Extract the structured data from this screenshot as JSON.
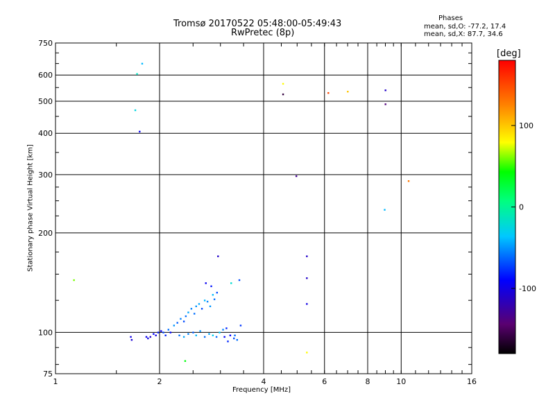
{
  "title": {
    "line1": "Tromsø 20170522 05:48:00-05:49:43",
    "line2": "RwPretec (8p)"
  },
  "stats": {
    "label": "Phases",
    "o_line": "mean, sd,O: -77.2, 17.4",
    "x_line": "mean, sd,X:  87.7, 34.6"
  },
  "colorbar": {
    "unit": "[deg]",
    "range": [
      -180,
      180
    ],
    "ticks": [
      {
        "value": 100,
        "label": "100"
      },
      {
        "value": 0,
        "label": "0"
      },
      {
        "value": -100,
        "label": "-100"
      }
    ]
  },
  "chart_data": {
    "type": "scatter",
    "xlabel": "Frequency [MHz]",
    "ylabel": "Stationary phase Virtual Height [km]",
    "xscale": "log",
    "yscale": "log",
    "xlim": [
      1,
      16
    ],
    "ylim": [
      75,
      750
    ],
    "grid": true,
    "x_ticks": [
      {
        "value": 1,
        "label": "1"
      },
      {
        "value": 2,
        "label": "2"
      },
      {
        "value": 4,
        "label": "4"
      },
      {
        "value": 6,
        "label": "6"
      },
      {
        "value": 8,
        "label": "8"
      },
      {
        "value": 10,
        "label": "10"
      },
      {
        "value": 16,
        "label": "16"
      }
    ],
    "y_ticks": [
      {
        "value": 75,
        "label": "75"
      },
      {
        "value": 100,
        "label": "100"
      },
      {
        "value": 200,
        "label": "200"
      },
      {
        "value": 300,
        "label": "300"
      },
      {
        "value": 400,
        "label": "400"
      },
      {
        "value": 500,
        "label": "500"
      },
      {
        "value": 600,
        "label": "600"
      },
      {
        "value": 750,
        "label": "750"
      }
    ],
    "points": [
      [
        1.72,
        605,
        -15
      ],
      [
        1.78,
        650,
        -40
      ],
      [
        1.7,
        470,
        -25
      ],
      [
        1.75,
        405,
        -95
      ],
      [
        1.65,
        97,
        -100
      ],
      [
        1.66,
        95,
        -105
      ],
      [
        1.83,
        97,
        -95
      ],
      [
        1.85,
        96,
        -100
      ],
      [
        1.88,
        97,
        -110
      ],
      [
        1.92,
        99,
        -90
      ],
      [
        1.95,
        98,
        -100
      ],
      [
        1.98,
        100,
        -85
      ],
      [
        2.02,
        101,
        -95
      ],
      [
        2.05,
        100,
        -70
      ],
      [
        2.08,
        98,
        -80
      ],
      [
        2.12,
        102,
        -60
      ],
      [
        2.15,
        100,
        -90
      ],
      [
        2.2,
        105,
        -50
      ],
      [
        2.25,
        107,
        -65
      ],
      [
        2.3,
        110,
        -55
      ],
      [
        2.35,
        108,
        -70
      ],
      [
        2.38,
        112,
        -60
      ],
      [
        2.42,
        115,
        -45
      ],
      [
        2.47,
        118,
        -55
      ],
      [
        2.52,
        114,
        -60
      ],
      [
        2.55,
        120,
        -50
      ],
      [
        2.6,
        122,
        -45
      ],
      [
        2.65,
        118,
        -70
      ],
      [
        2.7,
        125,
        -40
      ],
      [
        2.75,
        124,
        -55
      ],
      [
        2.8,
        120,
        -50
      ],
      [
        2.85,
        130,
        -40
      ],
      [
        2.88,
        126,
        -60
      ],
      [
        2.93,
        132,
        -70
      ],
      [
        2.28,
        98,
        -60
      ],
      [
        2.35,
        97,
        -45
      ],
      [
        2.42,
        99,
        -55
      ],
      [
        2.5,
        100,
        -65
      ],
      [
        2.55,
        98,
        -40
      ],
      [
        2.62,
        101,
        -50
      ],
      [
        2.7,
        97,
        -60
      ],
      [
        2.78,
        99,
        -45
      ],
      [
        2.85,
        98,
        -30
      ],
      [
        2.92,
        97,
        -60
      ],
      [
        2.98,
        100,
        -35
      ],
      [
        3.05,
        102,
        -55
      ],
      [
        3.12,
        103,
        -80
      ],
      [
        3.2,
        98,
        -90
      ],
      [
        3.28,
        96,
        -70
      ],
      [
        3.35,
        95,
        -60
      ],
      [
        2.72,
        141,
        -95
      ],
      [
        2.82,
        138,
        -85
      ],
      [
        2.95,
        170,
        -110
      ],
      [
        3.22,
        141,
        -20
      ],
      [
        3.4,
        144,
        -70
      ],
      [
        3.15,
        94,
        -80
      ],
      [
        3.08,
        97,
        -90
      ],
      [
        3.3,
        98,
        -60
      ],
      [
        3.43,
        105,
        -75
      ],
      [
        2.37,
        82,
        40
      ],
      [
        1.13,
        144,
        60
      ],
      [
        5.33,
        170,
        -110
      ],
      [
        5.33,
        146,
        -110
      ],
      [
        5.33,
        122,
        -100
      ],
      [
        5.33,
        87,
        80
      ],
      [
        4.97,
        297,
        -130
      ],
      [
        6.15,
        530,
        150
      ],
      [
        7.0,
        535,
        100
      ],
      [
        9.0,
        540,
        -110
      ],
      [
        9.0,
        490,
        -140
      ],
      [
        10.5,
        287,
        130
      ],
      [
        4.55,
        565,
        80
      ],
      [
        4.55,
        525,
        -160
      ],
      [
        8.95,
        235,
        -40
      ]
    ]
  }
}
